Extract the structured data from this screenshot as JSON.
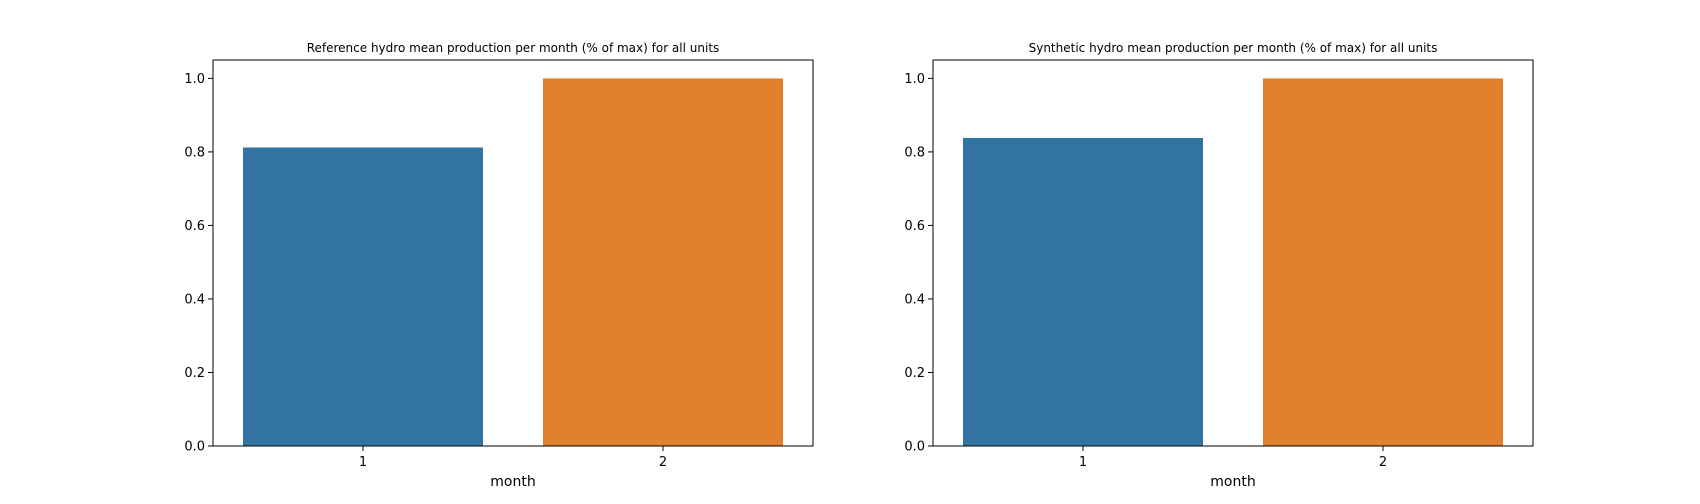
{
  "chart_data": [
    {
      "type": "bar",
      "title": "Reference hydro mean production per month (% of max) for all units",
      "xlabel": "month",
      "ylabel": "",
      "categories": [
        "1",
        "2"
      ],
      "values": [
        0.812,
        1.0
      ],
      "ylim": [
        0,
        1.05
      ],
      "yticks": [
        "0.0",
        "0.2",
        "0.4",
        "0.6",
        "0.8",
        "1.0"
      ],
      "colors": [
        "#3274a1",
        "#e1812c"
      ],
      "grid": false,
      "legend": "none"
    },
    {
      "type": "bar",
      "title": "Synthetic hydro mean production per month (% of max) for all units",
      "xlabel": "month",
      "ylabel": "",
      "categories": [
        "1",
        "2"
      ],
      "values": [
        0.838,
        1.0
      ],
      "ylim": [
        0,
        1.05
      ],
      "yticks": [
        "0.0",
        "0.2",
        "0.4",
        "0.6",
        "0.8",
        "1.0"
      ],
      "colors": [
        "#3274a1",
        "#e1812c"
      ],
      "grid": false,
      "legend": "none"
    }
  ]
}
